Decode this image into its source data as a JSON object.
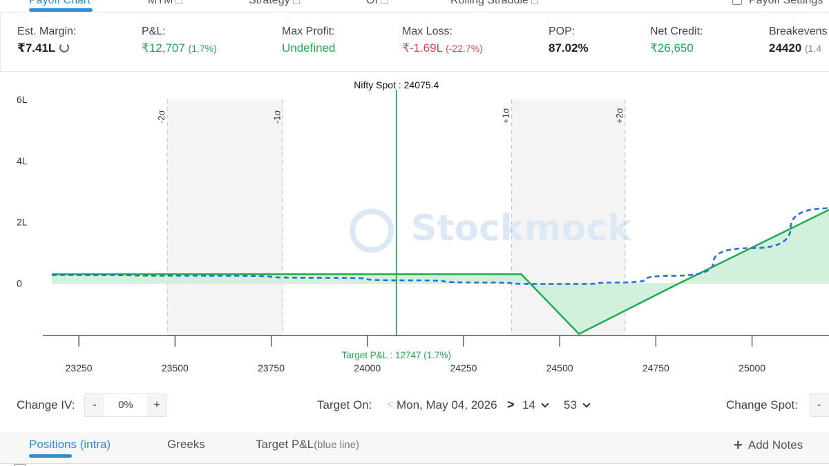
{
  "top_tabs": [
    {
      "label": "Payoff Chart",
      "active": true
    },
    {
      "label": "MTM",
      "active": false
    },
    {
      "label": "Strategy",
      "active": false
    },
    {
      "label": "OI",
      "active": false
    },
    {
      "label": "Rolling Straddle",
      "active": false
    },
    {
      "label": "Payoff Settings",
      "active": false
    }
  ],
  "metrics": {
    "est_margin": {
      "label": "Est. Margin:",
      "value": "₹7.41L"
    },
    "pnl": {
      "label": "P&L:",
      "value": "₹12,707",
      "sub": "(1.7%)"
    },
    "max_profit": {
      "label": "Max Profit:",
      "value": "Undefined"
    },
    "max_loss": {
      "label": "Max Loss:",
      "value": "₹-1.69L",
      "sub": "(-22.7%)"
    },
    "pop": {
      "label": "POP:",
      "value": "87.02%"
    },
    "net_credit": {
      "label": "Net Credit:",
      "value": "₹26,650"
    },
    "breakevens": {
      "label": "Breakevens",
      "value": "24420",
      "sub": "(1.4"
    }
  },
  "chart_data": {
    "type": "line",
    "title": "Nifty Spot : 24075.4",
    "spot": 24075.4,
    "xlim": [
      23160,
      25200
    ],
    "ylim": [
      -170000,
      600000
    ],
    "x_ticks": [
      23250,
      23500,
      23750,
      24000,
      24250,
      24500,
      24750,
      25000
    ],
    "y_ticks": [
      {
        "value": 0,
        "label": "0"
      },
      {
        "value": 200000,
        "label": "2L"
      },
      {
        "value": 400000,
        "label": "4L"
      },
      {
        "value": 600000,
        "label": "6L"
      }
    ],
    "sigma_lines": [
      {
        "label": "-2σ",
        "x": 23480
      },
      {
        "label": "-1σ",
        "x": 23780
      },
      {
        "label": "+1σ",
        "x": 24375
      },
      {
        "label": "+2σ",
        "x": 24670
      }
    ],
    "series": [
      {
        "color": "#1eaa4f",
        "style": "solid",
        "points": [
          [
            23180,
            30000
          ],
          [
            24400,
            30000
          ],
          [
            24550,
            -165000
          ],
          [
            24810,
            0
          ],
          [
            25200,
            240000
          ]
        ]
      },
      {
        "color": "#2670d6",
        "style": "dashed",
        "points": [
          [
            23180,
            27000
          ],
          [
            23600,
            25000
          ],
          [
            23900,
            18000
          ],
          [
            24100,
            10000
          ],
          [
            24300,
            3000
          ],
          [
            24450,
            -2000
          ],
          [
            24550,
            -2000
          ],
          [
            24650,
            3000
          ],
          [
            24800,
            25000
          ],
          [
            25000,
            115000
          ],
          [
            25200,
            245000
          ]
        ]
      }
    ],
    "target_label": "Target P&L : 12747 (1.7%)",
    "watermark": "Stockmock"
  },
  "controls": {
    "change_iv_label": "Change IV:",
    "iv_minus": "-",
    "iv_value": "0%",
    "iv_plus": "+",
    "target_on_label": "Target On:",
    "prev_chevron": "<",
    "target_date": "Mon, May 04, 2026",
    "next_chevron": ">",
    "hour": "14",
    "minute": "53",
    "change_spot_label": "Change Spot:",
    "spot_minus": "-"
  },
  "bottom_tabs": {
    "positions": "Positions (intra)",
    "greeks": "Greeks",
    "target_pnl": "Target P&L",
    "target_pnl_note": "(blue line)",
    "add_notes": "Add Notes"
  }
}
